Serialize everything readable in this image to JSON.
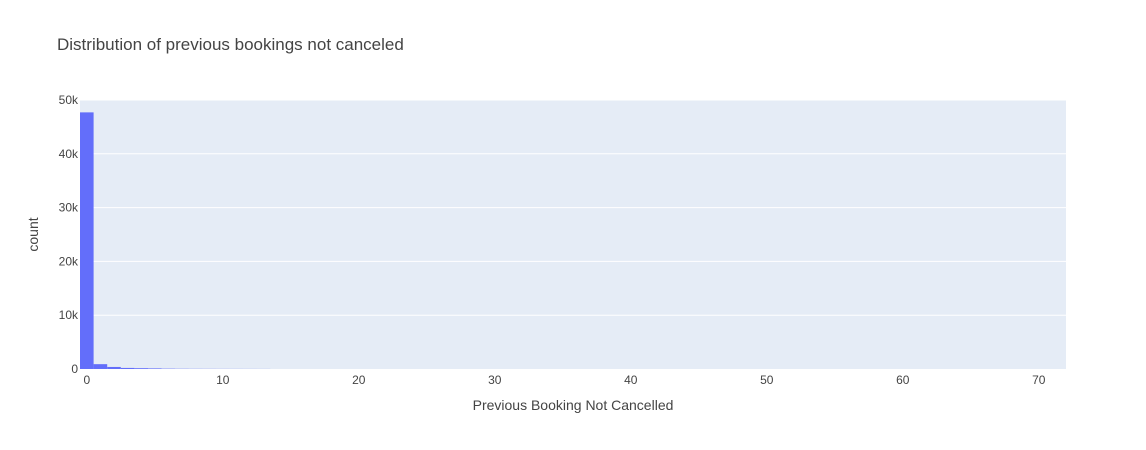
{
  "chart_data": {
    "type": "bar",
    "title": "Distribution of previous bookings not canceled",
    "xlabel": "Previous Booking Not Cancelled",
    "ylabel": "count",
    "xlim": [
      -0.5,
      72
    ],
    "ylim": [
      0,
      50000
    ],
    "x_ticks": [
      0,
      10,
      20,
      30,
      40,
      50,
      60,
      70
    ],
    "y_ticks": [
      0,
      10000,
      20000,
      30000,
      40000,
      50000
    ],
    "y_tick_labels": [
      "0",
      "10k",
      "20k",
      "30k",
      "40k",
      "50k"
    ],
    "bin_width": 1,
    "bins": [
      {
        "x0": -0.5,
        "x1": 0.5,
        "value": 47700
      },
      {
        "x0": 0.5,
        "x1": 1.5,
        "value": 900
      },
      {
        "x0": 1.5,
        "x1": 2.5,
        "value": 380
      },
      {
        "x0": 2.5,
        "x1": 3.5,
        "value": 200
      },
      {
        "x0": 3.5,
        "x1": 4.5,
        "value": 150
      },
      {
        "x0": 4.5,
        "x1": 5.5,
        "value": 110
      },
      {
        "x0": 5.5,
        "x1": 6.5,
        "value": 60
      },
      {
        "x0": 6.5,
        "x1": 7.5,
        "value": 40
      },
      {
        "x0": 7.5,
        "x1": 8.5,
        "value": 30
      },
      {
        "x0": 8.5,
        "x1": 9.5,
        "value": 25
      },
      {
        "x0": 9.5,
        "x1": 10.5,
        "value": 20
      },
      {
        "x0": 10.5,
        "x1": 11.5,
        "value": 18
      },
      {
        "x0": 11.5,
        "x1": 12.5,
        "value": 15
      },
      {
        "x0": 12.5,
        "x1": 13.5,
        "value": 12
      }
    ],
    "grid": true,
    "colors": {
      "bar": "#636efa",
      "plot_bg": "#e5ecf6",
      "grid": "#ffffff",
      "text": "#444444"
    }
  }
}
